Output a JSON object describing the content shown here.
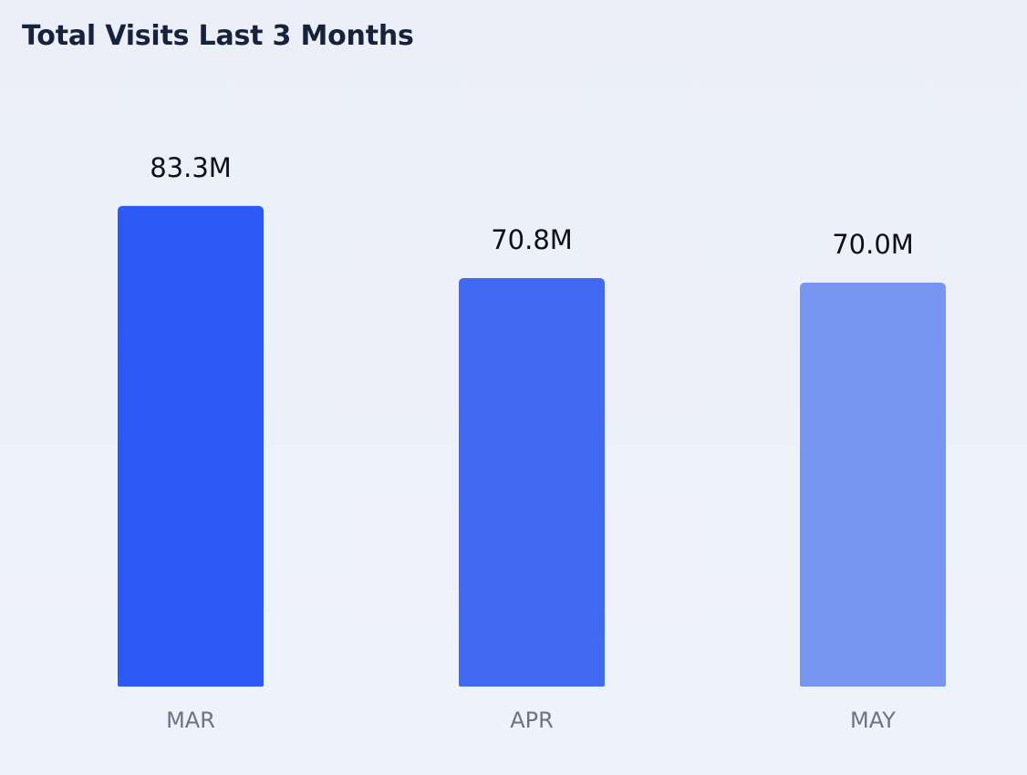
{
  "chart_data": {
    "type": "bar",
    "title": "Total Visits Last 3 Months",
    "categories": [
      "MAR",
      "APR",
      "MAY"
    ],
    "values": [
      83.3,
      70.8,
      70.0
    ],
    "value_labels": [
      "83.3M",
      "70.8M",
      "70.0M"
    ],
    "unit": "M",
    "colors": [
      "#2d5af6",
      "#4169f3",
      "#7895f2"
    ],
    "ylim": [
      0,
      91.5
    ],
    "grid": false,
    "legend": "none"
  }
}
